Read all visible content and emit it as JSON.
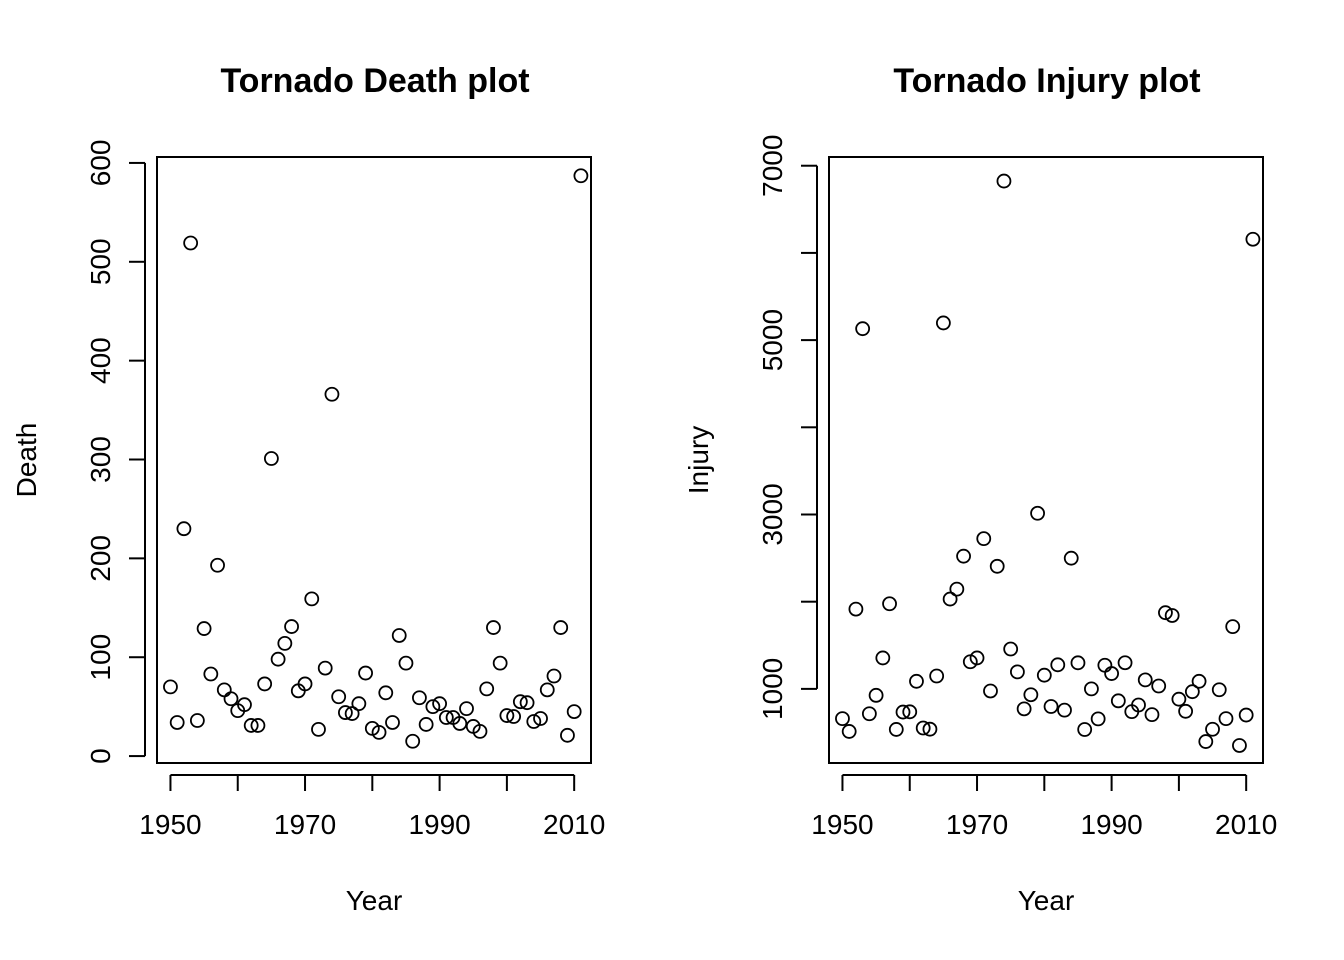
{
  "chart_data": [
    {
      "type": "scatter",
      "title": "Tornado Death plot",
      "xlabel": "Year",
      "ylabel": "Death",
      "xlim": [
        1948,
        2012.5
      ],
      "ylim": [
        -7,
        606
      ],
      "xticks": [
        1950,
        1970,
        1990,
        2010
      ],
      "yticks": [
        0,
        100,
        200,
        300,
        400,
        500,
        600
      ],
      "x": [
        1950,
        1951,
        1952,
        1953,
        1954,
        1955,
        1956,
        1957,
        1958,
        1959,
        1960,
        1961,
        1962,
        1963,
        1964,
        1965,
        1966,
        1967,
        1968,
        1969,
        1970,
        1971,
        1972,
        1973,
        1974,
        1975,
        1976,
        1977,
        1978,
        1979,
        1980,
        1981,
        1982,
        1983,
        1984,
        1985,
        1986,
        1987,
        1988,
        1989,
        1990,
        1991,
        1992,
        1993,
        1994,
        1995,
        1996,
        1997,
        1998,
        1999,
        2000,
        2001,
        2002,
        2003,
        2004,
        2005,
        2006,
        2007,
        2008,
        2009,
        2010,
        2011
      ],
      "y": [
        70,
        34,
        230,
        519,
        36,
        129,
        83,
        193,
        67,
        58,
        46,
        52,
        31,
        31,
        73,
        301,
        98,
        114,
        131,
        66,
        73,
        159,
        27,
        89,
        366,
        60,
        44,
        43,
        53,
        84,
        28,
        24,
        64,
        34,
        122,
        94,
        15,
        59,
        32,
        50,
        53,
        39,
        39,
        33,
        48,
        30,
        25,
        68,
        130,
        94,
        41,
        40,
        55,
        54,
        35,
        38,
        67,
        81,
        130,
        21,
        45,
        587
      ]
    },
    {
      "type": "scatter",
      "title": "Tornado Injury plot",
      "xlabel": "Year",
      "ylabel": "Injury",
      "xlim": [
        1948,
        2012.5
      ],
      "ylim": [
        150,
        7100
      ],
      "xticks": [
        1950,
        1970,
        1990,
        2010
      ],
      "yticks": [
        1000,
        3000,
        5000,
        7000
      ],
      "x": [
        1950,
        1951,
        1952,
        1953,
        1954,
        1955,
        1956,
        1957,
        1958,
        1959,
        1960,
        1961,
        1962,
        1963,
        1964,
        1965,
        1966,
        1967,
        1968,
        1969,
        1970,
        1971,
        1972,
        1973,
        1974,
        1975,
        1976,
        1977,
        1978,
        1979,
        1980,
        1981,
        1982,
        1983,
        1984,
        1985,
        1986,
        1987,
        1988,
        1989,
        1990,
        1991,
        1992,
        1993,
        1994,
        1995,
        1996,
        1997,
        1998,
        1999,
        2000,
        2001,
        2002,
        2003,
        2004,
        2005,
        2006,
        2007,
        2008,
        2009,
        2010,
        2011
      ],
      "y": [
        659,
        512,
        1915,
        5131,
        715,
        926,
        1355,
        1976,
        535,
        734,
        737,
        1087,
        551,
        538,
        1148,
        5197,
        2030,
        2144,
        2522,
        1311,
        1355,
        2723,
        976,
        2406,
        6824,
        1457,
        1195,
        771,
        933,
        3014,
        1157,
        798,
        1276,
        756,
        2499,
        1299,
        534,
        1000,
        656,
        1271,
        1176,
        863,
        1300,
        739,
        815,
        1103,
        705,
        1033,
        1874,
        1842,
        882,
        743,
        968,
        1087,
        396,
        537,
        990,
        659,
        1714,
        351,
        700,
        6157
      ]
    }
  ]
}
